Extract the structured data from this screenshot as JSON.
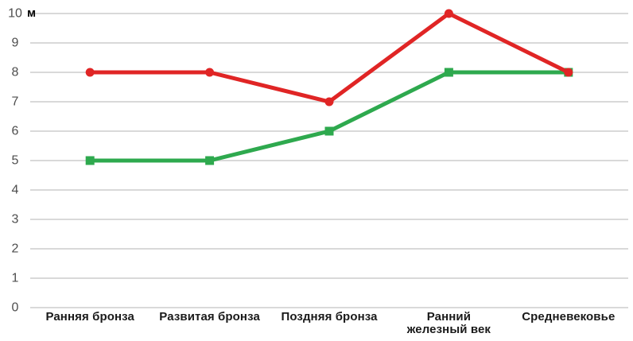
{
  "chart_data": {
    "type": "line",
    "title": "",
    "unit_label": "м",
    "categories": [
      "Ранняя бронза",
      "Развитая бронза",
      "Поздняя бронза",
      "Ранний\nжелезный век",
      "Средневековье"
    ],
    "y_ticks": [
      0,
      1,
      2,
      3,
      4,
      5,
      6,
      7,
      8,
      9,
      10
    ],
    "ylim": [
      0,
      10
    ],
    "grid": "horizontal",
    "legend": "none",
    "colors": {
      "gridline": "#d9d9d9",
      "tick_text": "#4d4d4d",
      "category_text": "#1a1a1a"
    },
    "series": [
      {
        "name": "green",
        "color": "#2ea94e",
        "marker": "square",
        "values": [
          5,
          5,
          6,
          8,
          8
        ]
      },
      {
        "name": "red",
        "color": "#e02525",
        "marker": "circle",
        "values": [
          8,
          8,
          7,
          10,
          8
        ]
      }
    ]
  }
}
